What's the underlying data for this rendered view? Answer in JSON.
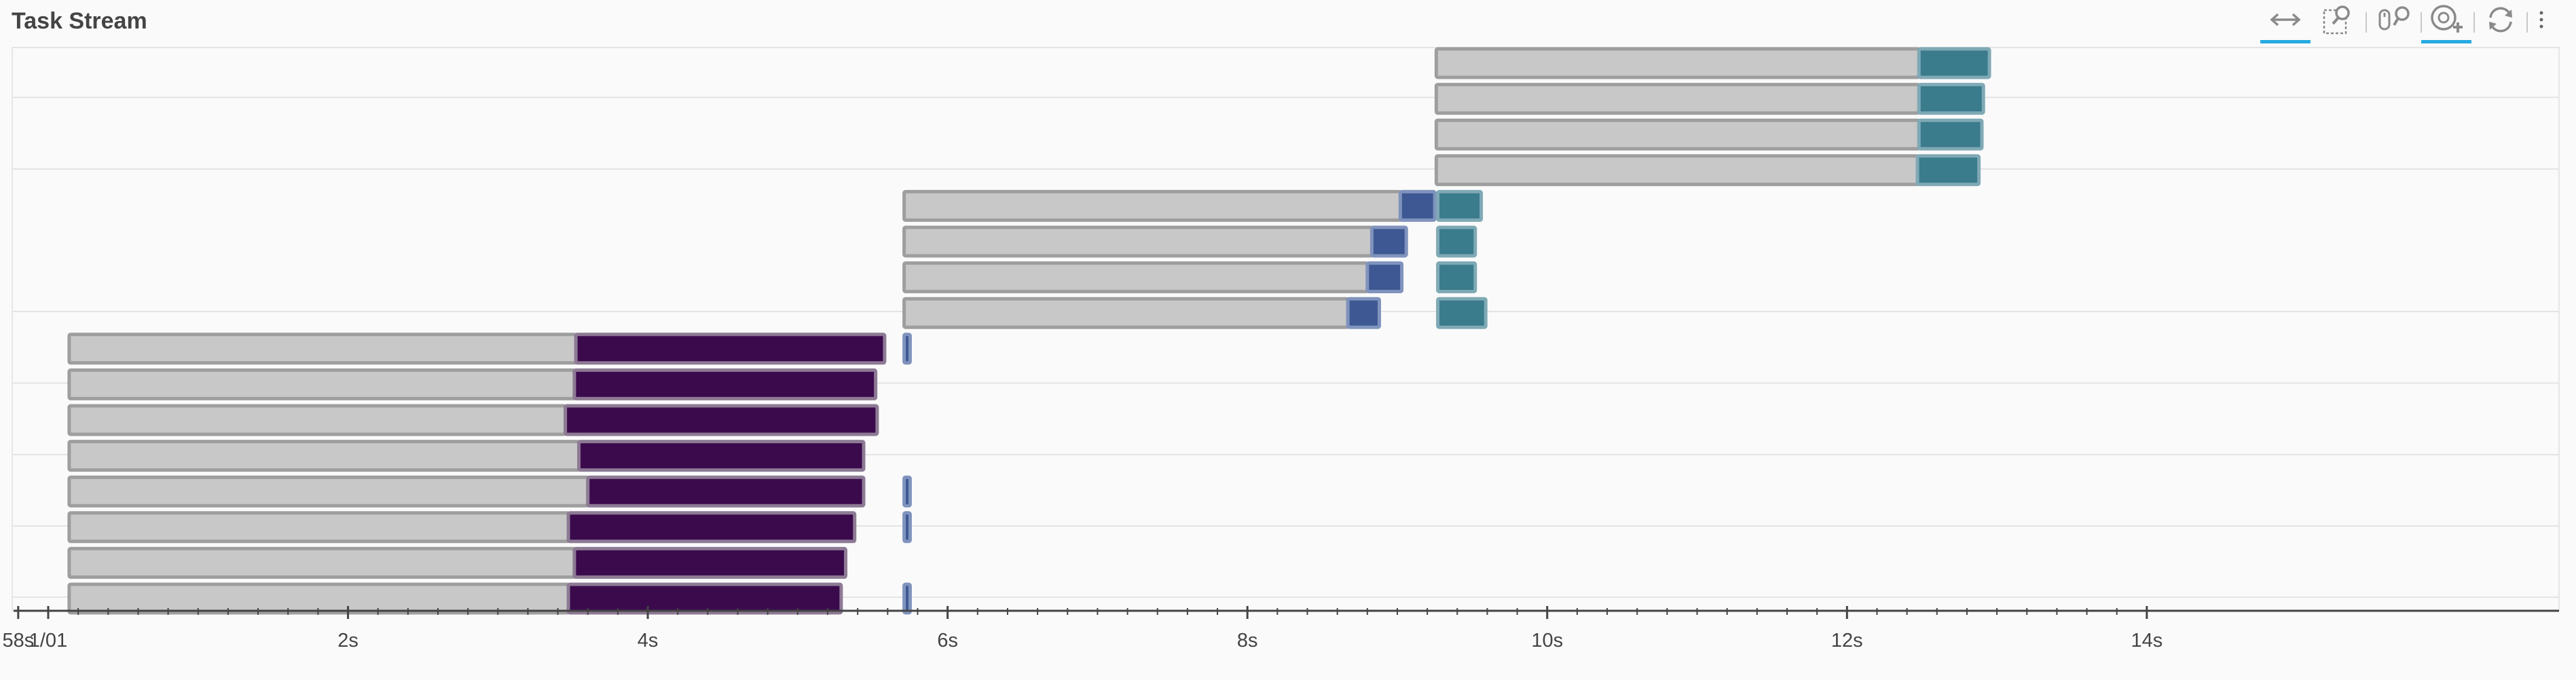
{
  "window": {
    "title": "Task Stream"
  },
  "toolbar": {
    "tools": [
      {
        "name": "x-pan-tool-icon",
        "label": "Pan",
        "active": true
      },
      {
        "name": "box-zoom-tool-icon",
        "label": "Box Zoom",
        "active": false
      },
      {
        "name": "wheel-zoom-tool-icon",
        "label": "Wheel Zoom",
        "active": false
      },
      {
        "name": "hover-tool-icon",
        "label": "Hover",
        "active": true
      },
      {
        "name": "reset-tool-icon",
        "label": "Reset",
        "active": false
      }
    ],
    "more_icon": "kebab-menu-icon"
  },
  "colors": {
    "transfer": "#c8c8c8",
    "compute": "#3b0a4d",
    "blue": "#3e5893",
    "teal": "#3a7b8c",
    "grid": "#e4e4e4",
    "axis": "#444444"
  },
  "chart_data": {
    "type": "bar",
    "orientation": "horizontal-timeline",
    "title": "Task Stream",
    "x_tick_labels": [
      "58s",
      "1/01",
      "2s",
      "4s",
      "6s",
      "8s",
      "10s",
      "12s",
      "14s"
    ],
    "x_tick_values": [
      -0.2,
      0,
      2,
      4,
      6,
      8,
      10,
      12,
      14
    ],
    "xlim": [
      -0.24,
      16.75
    ],
    "grid": "horizontal",
    "rows": [
      {
        "segments": [
          {
            "start": 9.26,
            "end": 12.48,
            "kind": "transfer"
          },
          {
            "start": 12.48,
            "end": 12.95,
            "kind": "teal"
          }
        ]
      },
      {
        "segments": [
          {
            "start": 9.26,
            "end": 12.48,
            "kind": "transfer"
          },
          {
            "start": 12.48,
            "end": 12.91,
            "kind": "teal"
          }
        ]
      },
      {
        "segments": [
          {
            "start": 9.26,
            "end": 12.48,
            "kind": "transfer"
          },
          {
            "start": 12.48,
            "end": 12.9,
            "kind": "teal"
          }
        ]
      },
      {
        "segments": [
          {
            "start": 9.26,
            "end": 12.47,
            "kind": "transfer"
          },
          {
            "start": 12.47,
            "end": 12.88,
            "kind": "teal"
          }
        ]
      },
      {
        "segments": [
          {
            "start": 5.71,
            "end": 9.02,
            "kind": "transfer"
          },
          {
            "start": 9.02,
            "end": 9.25,
            "kind": "blue"
          },
          {
            "start": 9.27,
            "end": 9.56,
            "kind": "teal"
          }
        ]
      },
      {
        "segments": [
          {
            "start": 5.71,
            "end": 8.83,
            "kind": "transfer"
          },
          {
            "start": 8.83,
            "end": 9.06,
            "kind": "blue"
          },
          {
            "start": 9.27,
            "end": 9.52,
            "kind": "teal"
          }
        ]
      },
      {
        "segments": [
          {
            "start": 5.71,
            "end": 8.8,
            "kind": "transfer"
          },
          {
            "start": 8.8,
            "end": 9.03,
            "kind": "blue"
          },
          {
            "start": 9.27,
            "end": 9.52,
            "kind": "teal"
          }
        ]
      },
      {
        "segments": [
          {
            "start": 5.71,
            "end": 8.67,
            "kind": "transfer"
          },
          {
            "start": 8.67,
            "end": 8.88,
            "kind": "blue"
          },
          {
            "start": 9.27,
            "end": 9.59,
            "kind": "teal"
          }
        ]
      },
      {
        "segments": [
          {
            "start": 0.14,
            "end": 3.52,
            "kind": "transfer"
          },
          {
            "start": 3.52,
            "end": 5.58,
            "kind": "compute"
          },
          {
            "start": 5.71,
            "end": 5.75,
            "kind": "blue"
          }
        ]
      },
      {
        "segments": [
          {
            "start": 0.14,
            "end": 3.51,
            "kind": "transfer"
          },
          {
            "start": 3.51,
            "end": 5.52,
            "kind": "compute"
          }
        ]
      },
      {
        "segments": [
          {
            "start": 0.14,
            "end": 3.45,
            "kind": "transfer"
          },
          {
            "start": 3.45,
            "end": 5.53,
            "kind": "compute"
          }
        ]
      },
      {
        "segments": [
          {
            "start": 0.14,
            "end": 3.54,
            "kind": "transfer"
          },
          {
            "start": 3.54,
            "end": 5.44,
            "kind": "compute"
          }
        ]
      },
      {
        "segments": [
          {
            "start": 0.14,
            "end": 3.6,
            "kind": "transfer"
          },
          {
            "start": 3.6,
            "end": 5.44,
            "kind": "compute"
          },
          {
            "start": 5.71,
            "end": 5.75,
            "kind": "blue"
          }
        ]
      },
      {
        "segments": [
          {
            "start": 0.14,
            "end": 3.47,
            "kind": "transfer"
          },
          {
            "start": 3.47,
            "end": 5.38,
            "kind": "compute"
          },
          {
            "start": 5.71,
            "end": 5.75,
            "kind": "blue"
          }
        ]
      },
      {
        "segments": [
          {
            "start": 0.14,
            "end": 3.51,
            "kind": "transfer"
          },
          {
            "start": 3.51,
            "end": 5.32,
            "kind": "compute"
          }
        ]
      },
      {
        "segments": [
          {
            "start": 0.14,
            "end": 3.47,
            "kind": "transfer"
          },
          {
            "start": 3.47,
            "end": 5.29,
            "kind": "compute"
          },
          {
            "start": 5.71,
            "end": 5.75,
            "kind": "blue"
          }
        ]
      }
    ],
    "row_separators_after": [
      0,
      3,
      7,
      9,
      11,
      13,
      15
    ]
  }
}
